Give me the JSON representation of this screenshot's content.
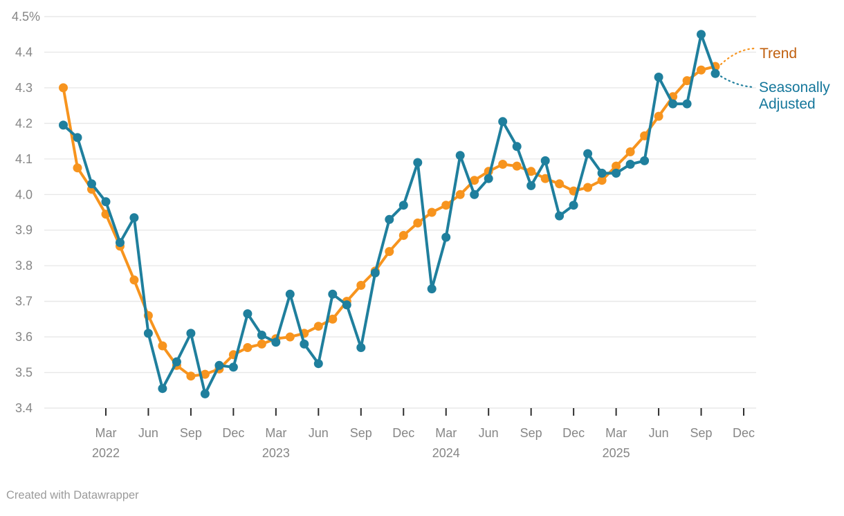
{
  "chart_data": {
    "type": "line",
    "unit": "%",
    "ylim": [
      3.4,
      4.5
    ],
    "grid": true,
    "legend_position": "right-direct-labels",
    "months": [
      "Dec 2021",
      "Jan 2022",
      "Feb 2022",
      "Mar 2022",
      "Apr 2022",
      "May 2022",
      "Jun 2022",
      "Jul 2022",
      "Aug 2022",
      "Sep 2022",
      "Oct 2022",
      "Nov 2022",
      "Dec 2022",
      "Jan 2023",
      "Feb 2023",
      "Mar 2023",
      "Apr 2023",
      "May 2023",
      "Jun 2023",
      "Jul 2023",
      "Aug 2023",
      "Sep 2023",
      "Oct 2023",
      "Nov 2023",
      "Dec 2023",
      "Jan 2024",
      "Feb 2024",
      "Mar 2024",
      "Apr 2024",
      "May 2024",
      "Jun 2024",
      "Jul 2024",
      "Aug 2024",
      "Sep 2024",
      "Oct 2024",
      "Nov 2024",
      "Dec 2024",
      "Jan 2025",
      "Feb 2025",
      "Mar 2025",
      "Apr 2025",
      "May 2025",
      "Jun 2025",
      "Jul 2025",
      "Aug 2025",
      "Sep 2025",
      "Oct 2025"
    ],
    "series": [
      {
        "name": "Trend",
        "color": "#F7941E",
        "label_color": "#C05F0E",
        "values": [
          4.3,
          4.075,
          4.015,
          3.945,
          3.855,
          3.76,
          3.66,
          3.575,
          3.52,
          3.49,
          3.495,
          3.51,
          3.55,
          3.57,
          3.58,
          3.595,
          3.6,
          3.61,
          3.63,
          3.65,
          3.7,
          3.745,
          3.785,
          3.84,
          3.885,
          3.92,
          3.95,
          3.97,
          4.0,
          4.04,
          4.065,
          4.085,
          4.08,
          4.065,
          4.045,
          4.03,
          4.01,
          4.02,
          4.04,
          4.08,
          4.12,
          4.165,
          4.22,
          4.275,
          4.32,
          4.35,
          4.36
        ]
      },
      {
        "name": "Seasonally Adjusted",
        "color": "#1F7F9D",
        "label_color": "#15779B",
        "values": [
          4.195,
          4.16,
          4.03,
          3.98,
          3.865,
          3.935,
          3.61,
          3.455,
          3.53,
          3.61,
          3.44,
          3.52,
          3.515,
          3.665,
          3.605,
          3.585,
          3.72,
          3.58,
          3.525,
          3.72,
          3.69,
          3.57,
          3.78,
          3.93,
          3.97,
          4.09,
          3.735,
          3.88,
          4.11,
          4.0,
          4.045,
          4.205,
          4.135,
          4.025,
          4.095,
          3.94,
          3.97,
          4.115,
          4.06,
          4.06,
          4.085,
          4.095,
          4.33,
          4.255,
          4.255,
          4.45,
          4.34
        ]
      }
    ],
    "yticks": [
      {
        "v": 4.5,
        "label": "4.5%"
      },
      {
        "v": 4.4,
        "label": "4.4"
      },
      {
        "v": 4.3,
        "label": "4.3"
      },
      {
        "v": 4.2,
        "label": "4.2"
      },
      {
        "v": 4.1,
        "label": "4.1"
      },
      {
        "v": 4.0,
        "label": "4.0"
      },
      {
        "v": 3.9,
        "label": "3.9"
      },
      {
        "v": 3.8,
        "label": "3.8"
      },
      {
        "v": 3.7,
        "label": "3.7"
      },
      {
        "v": 3.6,
        "label": "3.6"
      },
      {
        "v": 3.5,
        "label": "3.5"
      },
      {
        "v": 3.4,
        "label": "3.4"
      }
    ],
    "xticks": [
      {
        "i": 3,
        "label": "Mar",
        "year": "2022"
      },
      {
        "i": 6,
        "label": "Jun"
      },
      {
        "i": 9,
        "label": "Sep"
      },
      {
        "i": 12,
        "label": "Dec"
      },
      {
        "i": 15,
        "label": "Mar",
        "year": "2023"
      },
      {
        "i": 18,
        "label": "Jun"
      },
      {
        "i": 21,
        "label": "Sep"
      },
      {
        "i": 24,
        "label": "Dec"
      },
      {
        "i": 27,
        "label": "Mar",
        "year": "2024"
      },
      {
        "i": 30,
        "label": "Jun"
      },
      {
        "i": 33,
        "label": "Sep"
      },
      {
        "i": 36,
        "label": "Dec"
      },
      {
        "i": 39,
        "label": "Mar",
        "year": "2025"
      },
      {
        "i": 42,
        "label": "Jun"
      },
      {
        "i": 45,
        "label": "Sep"
      },
      {
        "i": 48,
        "label": "Dec"
      }
    ],
    "colors": {
      "gridline": "#e8e8e8",
      "tick": "#2e2e2e",
      "axis_text": "#868686"
    }
  },
  "footer": {
    "credit": "Created with Datawrapper"
  }
}
